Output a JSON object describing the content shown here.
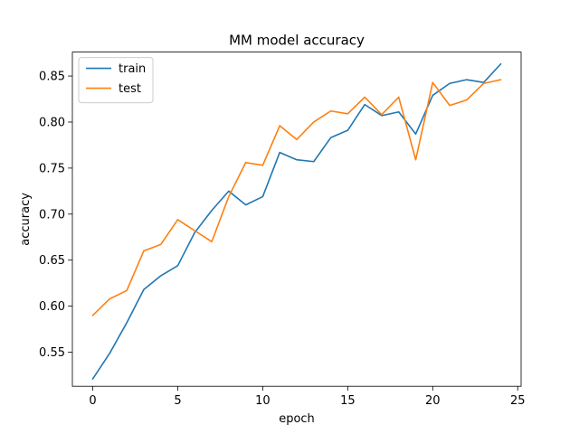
{
  "chart_data": {
    "type": "line",
    "title": "MM model accuracy",
    "xlabel": "epoch",
    "ylabel": "accuracy",
    "xlim": [
      -1.2,
      25.2
    ],
    "ylim": [
      0.513,
      0.876
    ],
    "xticks": [
      0,
      5,
      10,
      15,
      20,
      25
    ],
    "yticks": [
      0.55,
      0.6,
      0.65,
      0.7,
      0.75,
      0.8,
      0.85
    ],
    "xtick_labels": [
      "0",
      "5",
      "10",
      "15",
      "20",
      "25"
    ],
    "ytick_labels": [
      "0.55",
      "0.60",
      "0.65",
      "0.70",
      "0.75",
      "0.80",
      "0.85"
    ],
    "legend_position": "top-left",
    "grid": false,
    "x": [
      0,
      1,
      2,
      3,
      4,
      5,
      6,
      7,
      8,
      9,
      10,
      11,
      12,
      13,
      14,
      15,
      16,
      17,
      18,
      19,
      20,
      21,
      22,
      23,
      24
    ],
    "series": [
      {
        "name": "train",
        "color": "#1f77b4",
        "values": [
          0.521,
          0.549,
          0.582,
          0.618,
          0.633,
          0.644,
          0.68,
          0.704,
          0.725,
          0.71,
          0.719,
          0.767,
          0.759,
          0.757,
          0.783,
          0.791,
          0.819,
          0.807,
          0.811,
          0.787,
          0.829,
          0.842,
          0.846,
          0.843,
          0.863
        ]
      },
      {
        "name": "test",
        "color": "#ff7f0e",
        "values": [
          0.59,
          0.608,
          0.617,
          0.66,
          0.667,
          0.694,
          0.682,
          0.67,
          0.719,
          0.756,
          0.753,
          0.796,
          0.781,
          0.8,
          0.812,
          0.809,
          0.827,
          0.808,
          0.827,
          0.759,
          0.843,
          0.818,
          0.824,
          0.842,
          0.846
        ]
      }
    ]
  }
}
